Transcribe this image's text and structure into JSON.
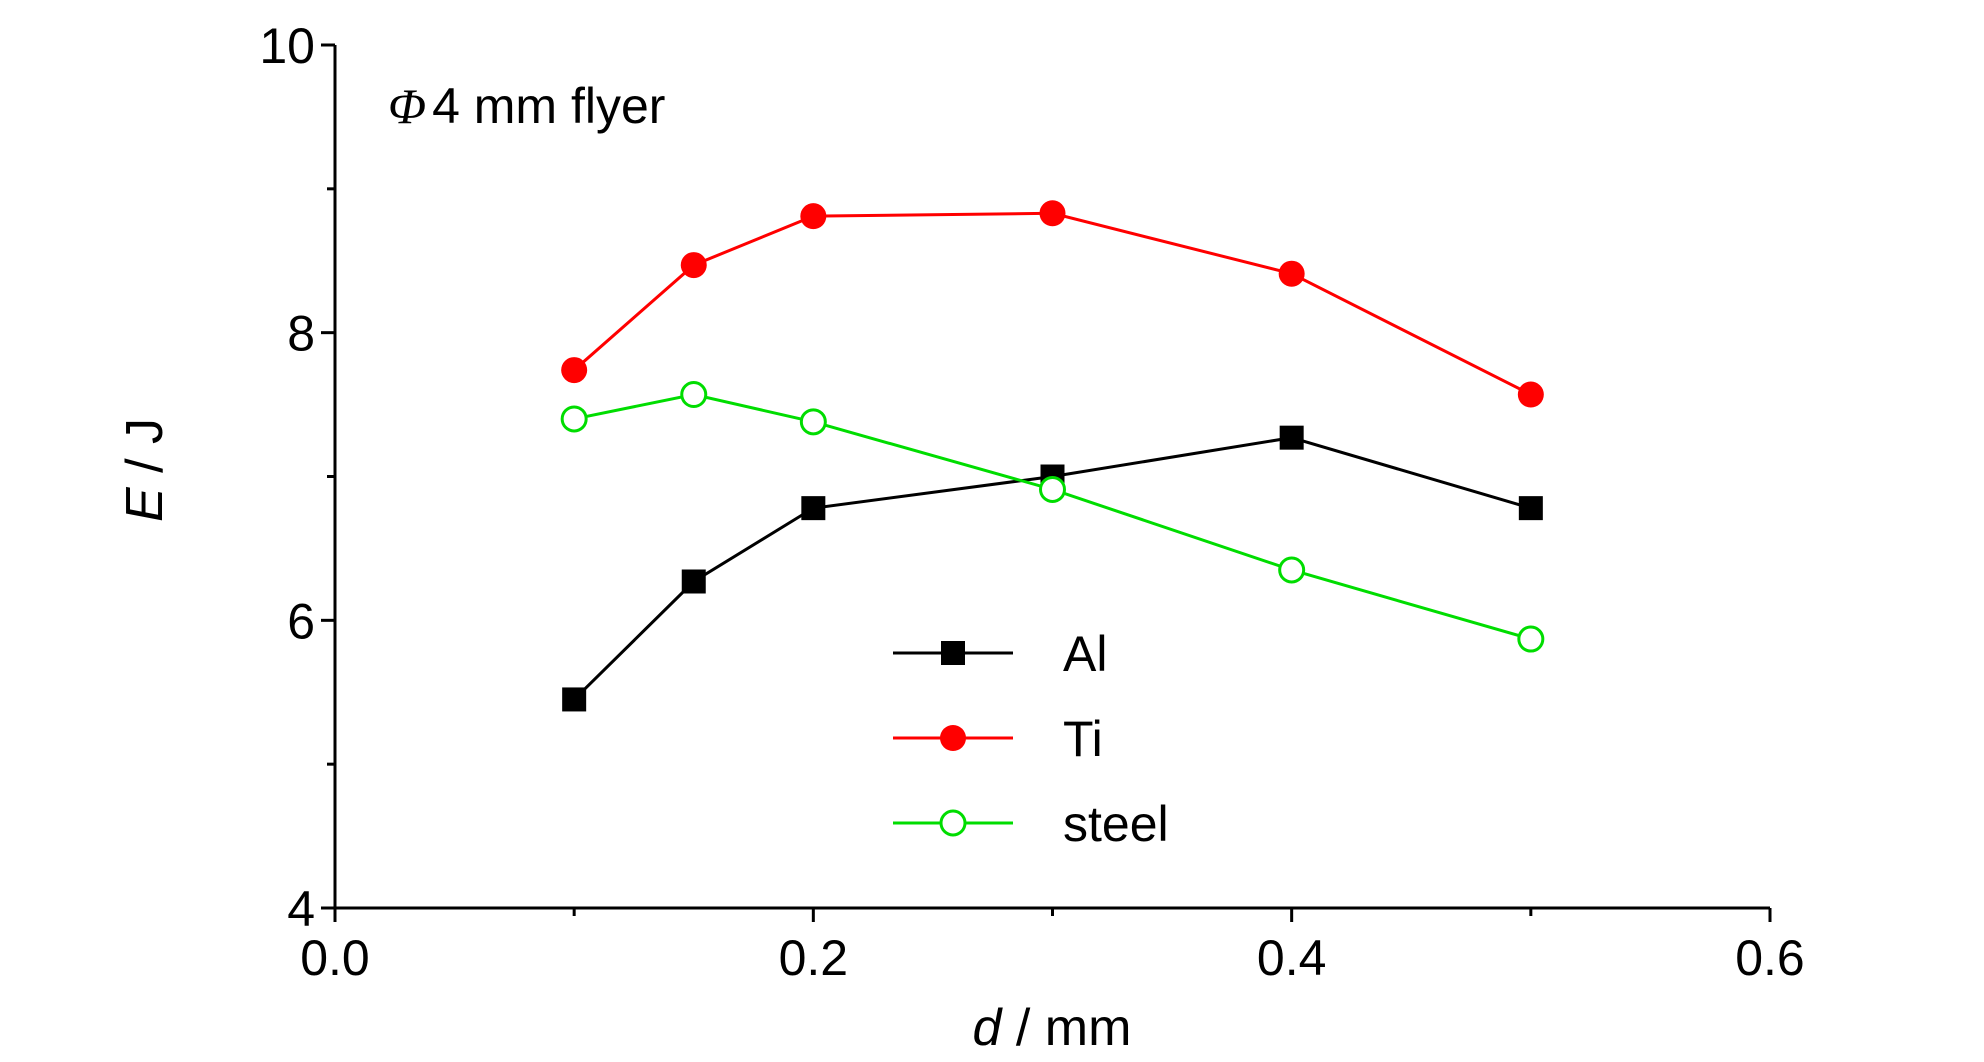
{
  "chart_data": {
    "type": "line",
    "annotation": {
      "symbol": "Φ",
      "text": "4 mm flyer"
    },
    "xlabel": {
      "var": "d",
      "unit": " / mm"
    },
    "ylabel": {
      "var": "E",
      "unit": " / J"
    },
    "xlim": [
      0.0,
      0.6
    ],
    "ylim": [
      4,
      10
    ],
    "xticks": [
      {
        "value": 0.0,
        "label": "0.0"
      },
      {
        "value": 0.2,
        "label": "0.2"
      },
      {
        "value": 0.4,
        "label": "0.4"
      },
      {
        "value": 0.6,
        "label": "0.6"
      }
    ],
    "x_minor_ticks": [
      0.1,
      0.3,
      0.5
    ],
    "yticks": [
      {
        "value": 4,
        "label": "4"
      },
      {
        "value": 6,
        "label": "6"
      },
      {
        "value": 8,
        "label": "8"
      },
      {
        "value": 10,
        "label": "10"
      }
    ],
    "y_minor_ticks": [
      5,
      7,
      9
    ],
    "grid": false,
    "legend_position": "center",
    "series": [
      {
        "name": "Al",
        "color": "#000000",
        "marker": "filled-square",
        "x": [
          0.1,
          0.15,
          0.2,
          0.3,
          0.4,
          0.5
        ],
        "y": [
          5.45,
          6.27,
          6.78,
          7.0,
          7.27,
          6.78
        ]
      },
      {
        "name": "Ti",
        "color": "#ff0000",
        "marker": "filled-circle",
        "x": [
          0.1,
          0.15,
          0.2,
          0.3,
          0.4,
          0.5
        ],
        "y": [
          7.74,
          8.47,
          8.81,
          8.83,
          8.41,
          7.57
        ]
      },
      {
        "name": "steel",
        "color": "#00dd00",
        "marker": "open-circle",
        "x": [
          0.1,
          0.15,
          0.2,
          0.3,
          0.4,
          0.5
        ],
        "y": [
          7.4,
          7.57,
          7.38,
          6.91,
          6.35,
          5.87
        ]
      }
    ]
  }
}
